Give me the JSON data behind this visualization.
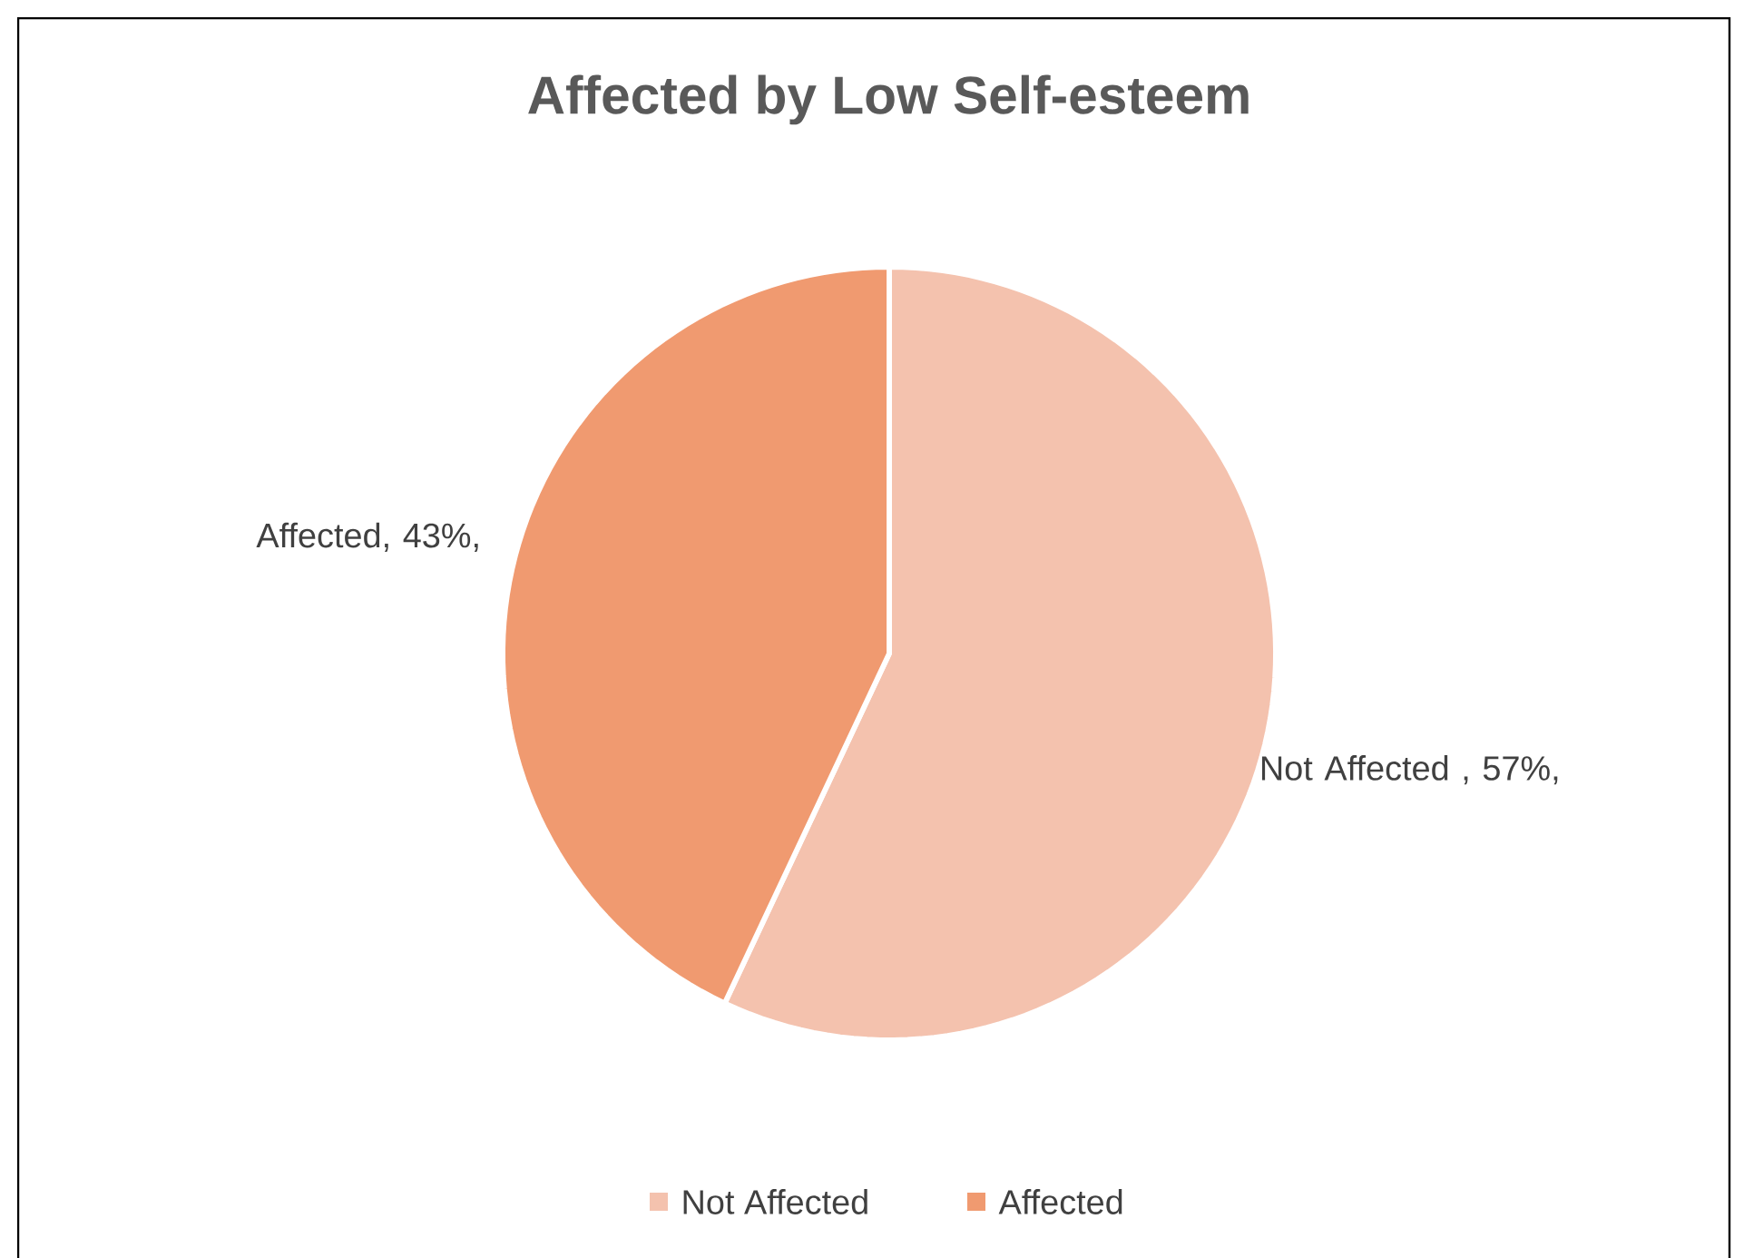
{
  "chart_data": {
    "type": "pie",
    "title": "Affected by Low Self-esteem",
    "categories": [
      "Not Affected",
      "Affected"
    ],
    "values": [
      57,
      43
    ],
    "colors": [
      "#f4c2ae",
      "#f09a70"
    ],
    "value_labels": [
      "Not Affected , 57%,",
      "Affected, 43%,"
    ],
    "legend": "bottom"
  }
}
